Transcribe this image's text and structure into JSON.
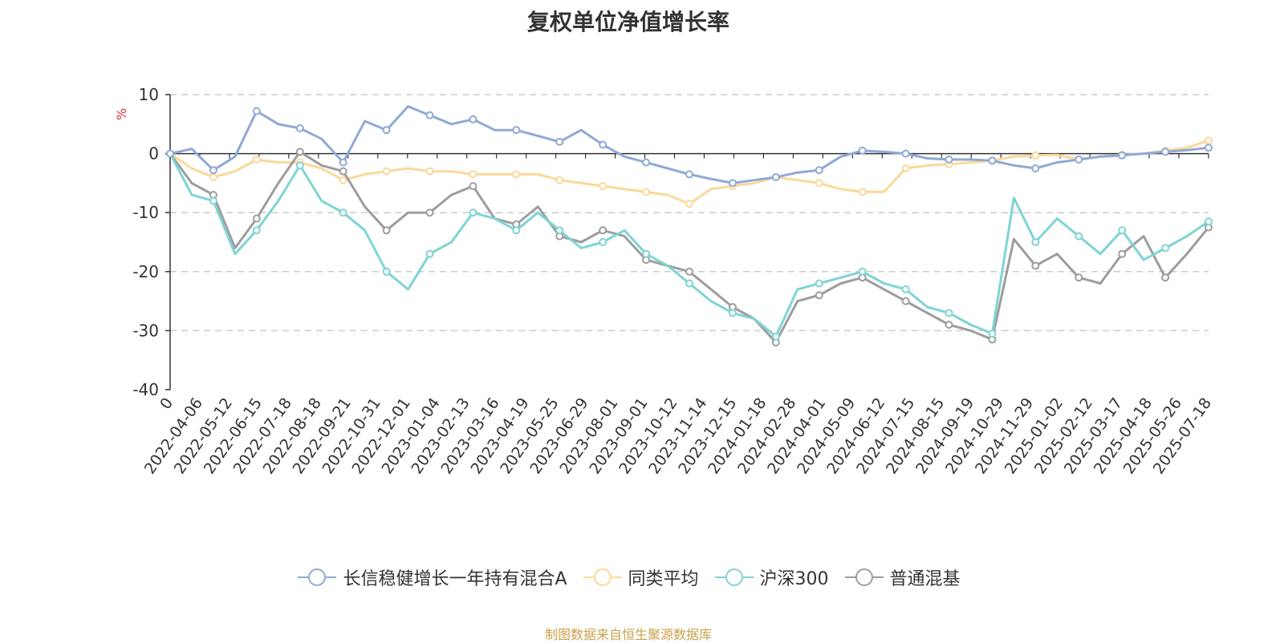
{
  "chart_data": {
    "type": "line",
    "title": "复权单位净值增长率",
    "ylabel": "%",
    "ylim": [
      -40,
      10
    ],
    "yticks": [
      10,
      0,
      -10,
      -20,
      -30,
      -40
    ],
    "x_tick_labels": [
      "0",
      "2022-04-06",
      "2022-05-12",
      "2022-06-15",
      "2022-07-18",
      "2022-08-18",
      "2022-09-21",
      "2022-10-31",
      "2022-12-01",
      "2023-01-04",
      "2023-02-13",
      "2023-03-16",
      "2023-04-19",
      "2023-05-25",
      "2023-06-29",
      "2023-08-01",
      "2023-09-01",
      "2023-10-12",
      "2023-11-14",
      "2023-12-15",
      "2024-01-18",
      "2024-02-28",
      "2024-04-01",
      "2024-05-09",
      "2024-06-12",
      "2024-07-15",
      "2024-08-15",
      "2024-09-19",
      "2024-10-29",
      "2024-11-29",
      "2025-01-02",
      "2025-02-12",
      "2025-03-17",
      "2025-04-18",
      "2025-05-26",
      "2025-07-18"
    ],
    "grid": true,
    "legend_position": "bottom-center",
    "series": [
      {
        "name": "长信稳健增长一年持有混合A",
        "color": "#8fa9d6",
        "values": [
          0,
          0.8,
          -2.8,
          -0.5,
          7.2,
          5.0,
          4.3,
          2.5,
          -1.5,
          5.5,
          4.0,
          8.0,
          6.5,
          5.0,
          5.8,
          4.0,
          4.0,
          3.0,
          2.0,
          4.0,
          1.5,
          -0.5,
          -1.5,
          -2.5,
          -3.5,
          -4.3,
          -5.0,
          -4.5,
          -4.0,
          -3.2,
          -2.8,
          -0.5,
          0.5,
          0.3,
          0.0,
          -0.8,
          -1.0,
          -1.0,
          -1.2,
          -2.0,
          -2.5,
          -1.5,
          -1.0,
          -0.5,
          -0.3,
          0.0,
          0.3,
          0.6,
          1.0
        ]
      },
      {
        "name": "同类平均",
        "color": "#fbd89a",
        "values": [
          0,
          -2.5,
          -4.0,
          -3.0,
          -1.0,
          -1.5,
          -1.5,
          -2.5,
          -4.5,
          -3.5,
          -3.0,
          -2.5,
          -3.0,
          -3.0,
          -3.5,
          -3.5,
          -3.5,
          -3.5,
          -4.5,
          -5.0,
          -5.5,
          -6.0,
          -6.5,
          -7.0,
          -8.5,
          -6.0,
          -5.5,
          -5.0,
          -4.0,
          -4.5,
          -5.0,
          -6.0,
          -6.5,
          -6.5,
          -2.5,
          -2.0,
          -1.8,
          -1.5,
          -1.2,
          -0.5,
          -0.3,
          -0.2,
          -1.0,
          -0.5,
          -0.2,
          0.0,
          0.5,
          1.0,
          2.2
        ]
      },
      {
        "name": "沪深300",
        "color": "#7fd4d4",
        "values": [
          0,
          -7.0,
          -8.0,
          -17.0,
          -13.0,
          -8.0,
          -2.0,
          -8.0,
          -10.0,
          -13.0,
          -20.0,
          -23.0,
          -17.0,
          -15.0,
          -10.0,
          -11.0,
          -13.0,
          -10.0,
          -13.0,
          -16.0,
          -15.0,
          -13.0,
          -17.0,
          -19.0,
          -22.0,
          -25.0,
          -27.0,
          -28.0,
          -31.0,
          -23.0,
          -22.0,
          -21.0,
          -20.0,
          -22.0,
          -23.0,
          -26.0,
          -27.0,
          -29.0,
          -30.5,
          -7.5,
          -15.0,
          -11.0,
          -14.0,
          -17.0,
          -13.0,
          -18.0,
          -16.0,
          -14.0,
          -11.5
        ]
      },
      {
        "name": "普通混基",
        "color": "#9d9d9d",
        "values": [
          0,
          -5.0,
          -7.0,
          -16.0,
          -11.0,
          -5.0,
          0.3,
          -2.0,
          -3.0,
          -9.0,
          -13.0,
          -10.0,
          -10.0,
          -7.0,
          -5.5,
          -11.0,
          -12.0,
          -9.0,
          -14.0,
          -15.0,
          -13.0,
          -14.0,
          -18.0,
          -19.0,
          -20.0,
          -23.0,
          -26.0,
          -28.0,
          -32.0,
          -25.0,
          -24.0,
          -22.0,
          -21.0,
          -23.0,
          -25.0,
          -27.0,
          -29.0,
          -30.0,
          -31.5,
          -14.5,
          -19.0,
          -17.0,
          -21.0,
          -22.0,
          -17.0,
          -14.0,
          -21.0,
          -17.0,
          -12.5
        ]
      }
    ]
  },
  "source": {
    "text": "制图数据来自恒生聚源数据库",
    "color": "#c9a14a"
  },
  "ylabel_color": "#e03030"
}
